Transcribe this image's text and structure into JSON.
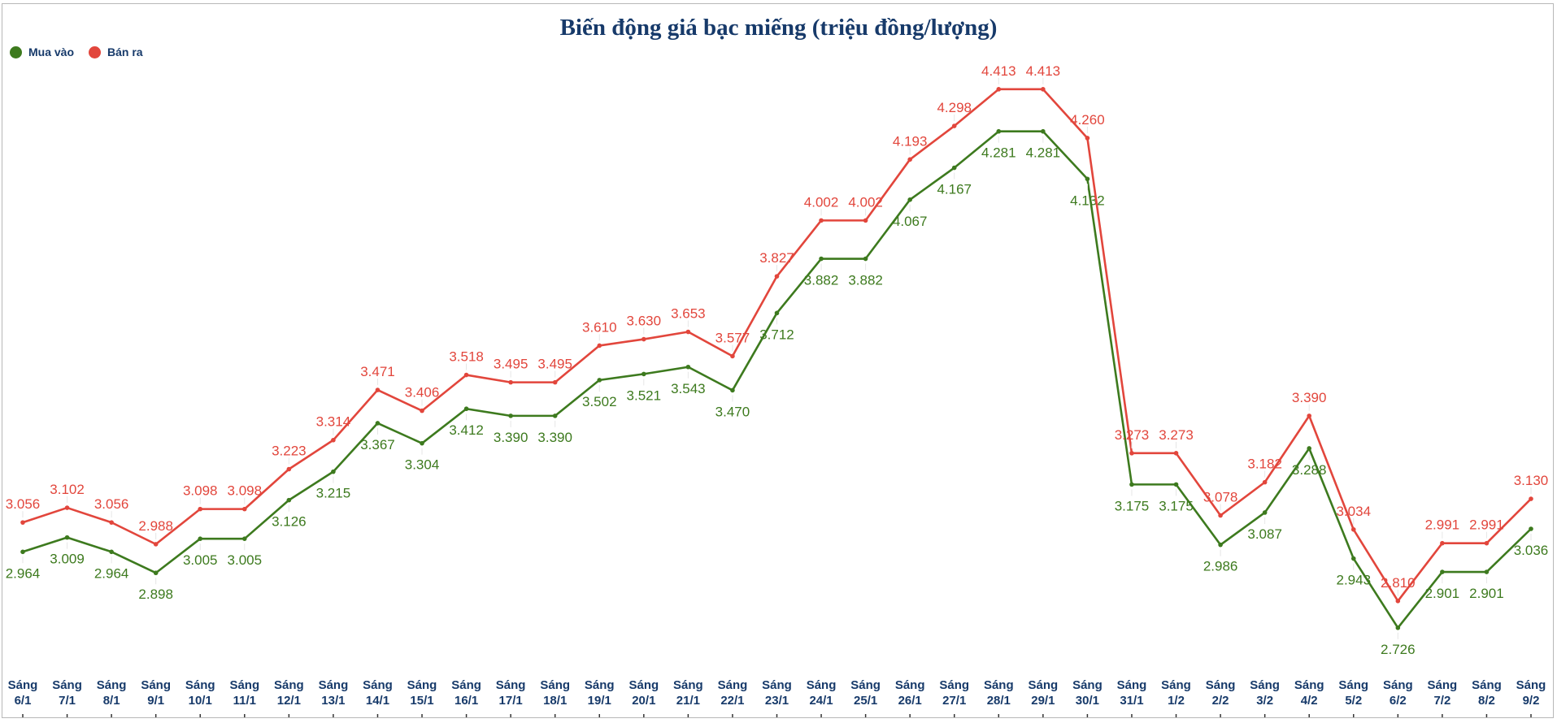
{
  "chart_data": {
    "type": "line",
    "title": "Biến động giá bạc miếng (triệu đồng/lượng)",
    "xlabel": "",
    "ylabel": "",
    "ylim": [
      2.55,
      4.55
    ],
    "grid": false,
    "legend_position": "top-left",
    "categories": [
      "Sáng 6/1",
      "Sáng 7/1",
      "Sáng 8/1",
      "Sáng 9/1",
      "Sáng 10/1",
      "Sáng 11/1",
      "Sáng 12/1",
      "Sáng 13/1",
      "Sáng 14/1",
      "Sáng 15/1",
      "Sáng 16/1",
      "Sáng 17/1",
      "Sáng 18/1",
      "Sáng 19/1",
      "Sáng 20/1",
      "Sáng 21/1",
      "Sáng 22/1",
      "Sáng 23/1",
      "Sáng 24/1",
      "Sáng 25/1",
      "Sáng 26/1",
      "Sáng 27/1",
      "Sáng 28/1",
      "Sáng 29/1",
      "Sáng 30/1",
      "Sáng 31/1",
      "Sáng 1/2",
      "Sáng 2/2",
      "Sáng 3/2",
      "Sáng 4/2",
      "Sáng 5/2",
      "Sáng 6/2",
      "Sáng 7/2",
      "Sáng 8/2",
      "Sáng 9/2"
    ],
    "series": [
      {
        "name": "Mua vào",
        "color": "#3d7a1e",
        "label_position": "below",
        "values": [
          2.964,
          3.009,
          2.964,
          2.898,
          3.005,
          3.005,
          3.126,
          3.215,
          3.367,
          3.304,
          3.412,
          3.39,
          3.39,
          3.502,
          3.521,
          3.543,
          3.47,
          3.712,
          3.882,
          3.882,
          4.067,
          4.167,
          4.281,
          4.281,
          4.132,
          3.175,
          3.175,
          2.986,
          3.087,
          3.288,
          2.943,
          2.726,
          2.901,
          2.901,
          3.036
        ]
      },
      {
        "name": "Bán ra",
        "color": "#e2463c",
        "label_position": "above",
        "values": [
          3.056,
          3.102,
          3.056,
          2.988,
          3.098,
          3.098,
          3.223,
          3.314,
          3.471,
          3.406,
          3.518,
          3.495,
          3.495,
          3.61,
          3.63,
          3.653,
          3.577,
          3.827,
          4.002,
          4.002,
          4.193,
          4.298,
          4.413,
          4.413,
          4.26,
          3.273,
          3.273,
          3.078,
          3.182,
          3.39,
          3.034,
          2.81,
          2.991,
          2.991,
          3.13
        ]
      }
    ]
  }
}
